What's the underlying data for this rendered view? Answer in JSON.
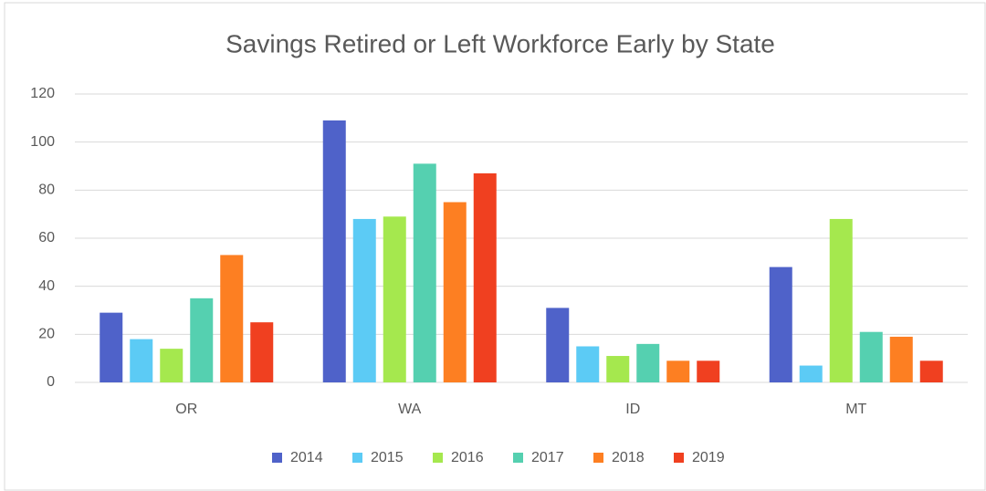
{
  "chart_data": {
    "type": "bar",
    "title": "Savings Retired or Left Workforce Early by State",
    "categories": [
      "OR",
      "WA",
      "ID",
      "MT"
    ],
    "series": [
      {
        "name": "2014",
        "color": "#4f62c9",
        "values": [
          29,
          109,
          31,
          48
        ]
      },
      {
        "name": "2015",
        "color": "#5ccbf5",
        "values": [
          18,
          68,
          15,
          7
        ]
      },
      {
        "name": "2016",
        "color": "#a5e84e",
        "values": [
          14,
          69,
          11,
          68
        ]
      },
      {
        "name": "2017",
        "color": "#55d0b0",
        "values": [
          35,
          91,
          16,
          21
        ]
      },
      {
        "name": "2018",
        "color": "#fd7f22",
        "values": [
          53,
          75,
          9,
          19
        ]
      },
      {
        "name": "2019",
        "color": "#f04020",
        "values": [
          25,
          87,
          9,
          9
        ]
      }
    ],
    "ylim": [
      0,
      120
    ],
    "yticks": [
      0,
      20,
      40,
      60,
      80,
      100,
      120
    ],
    "grid": true,
    "legend": "bottom"
  }
}
